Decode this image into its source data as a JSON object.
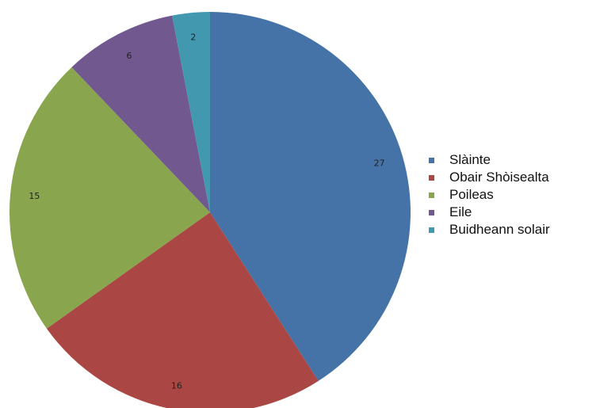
{
  "chart_data": {
    "type": "pie",
    "title": "",
    "start": "12 o'clock",
    "direction": "clockwise",
    "legend": "right",
    "slices": [
      {
        "name": "Slàinte",
        "value": 27,
        "label": "27",
        "color": "#4572a7"
      },
      {
        "name": "Obair Shòisealta",
        "value": 16,
        "label": "16",
        "color": "#aa4643"
      },
      {
        "name": "Poileas",
        "value": 15,
        "label": "15",
        "color": "#89a54e"
      },
      {
        "name": "Eile",
        "value": 6,
        "label": "6",
        "color": "#71588f"
      },
      {
        "name": "Buidheann solair",
        "value": 2,
        "label": "2",
        "color": "#4198af"
      }
    ]
  }
}
